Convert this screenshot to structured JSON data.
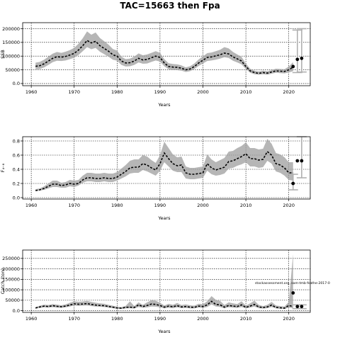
{
  "figure": {
    "title": "TAC=15663 then Fpa"
  },
  "chart_data": [
    {
      "type": "line",
      "ylabel": "SSB",
      "xlabel": "Years",
      "xlim": [
        1958,
        2025
      ],
      "ylim": [
        -8000,
        222000
      ],
      "xticks": [
        1960,
        1970,
        1980,
        1990,
        2000,
        2010,
        2020
      ],
      "yticks": [
        0,
        50000,
        100000,
        150000,
        200000
      ],
      "grid": true,
      "series": [
        {
          "x": [
            1961,
            1962,
            1963,
            1964,
            1965,
            1966,
            1967,
            1968,
            1969,
            1970,
            1971,
            1972,
            1973,
            1974,
            1975,
            1976,
            1977,
            1978,
            1979,
            1980,
            1981,
            1982,
            1983,
            1984,
            1985,
            1986,
            1987,
            1988,
            1989,
            1990,
            1991,
            1992,
            1993,
            1994,
            1995,
            1996,
            1997,
            1998,
            1999,
            2000,
            2001,
            2002,
            2003,
            2004,
            2005,
            2006,
            2007,
            2008,
            2009,
            2010,
            2011,
            2012,
            2013,
            2014,
            2015,
            2016,
            2017,
            2018,
            2019,
            2020,
            2021
          ],
          "y": [
            63000,
            65000,
            72000,
            82000,
            92000,
            98000,
            96000,
            99000,
            104000,
            110000,
            122000,
            138000,
            157000,
            148000,
            154000,
            138000,
            128000,
            118000,
            105000,
            100000,
            82000,
            75000,
            76000,
            82000,
            92000,
            86000,
            88000,
            94000,
            100000,
            95000,
            75000,
            62000,
            60000,
            59000,
            56000,
            50000,
            53000,
            62000,
            75000,
            85000,
            95000,
            97000,
            101000,
            105000,
            111000,
            108000,
            97000,
            90000,
            82000,
            62000,
            46000,
            40000,
            37000,
            40000,
            38000,
            42000,
            46000,
            45000,
            44000,
            50000,
            60000
          ],
          "lower": [
            52000,
            53000,
            59000,
            68000,
            78000,
            83000,
            82000,
            84000,
            89000,
            94000,
            104000,
            118000,
            133000,
            125000,
            130000,
            116000,
            107000,
            98000,
            87000,
            83000,
            68000,
            62000,
            63000,
            68000,
            77000,
            72000,
            73000,
            79000,
            84000,
            80000,
            63000,
            52000,
            50000,
            49000,
            47000,
            42000,
            45000,
            53000,
            64000,
            73000,
            82000,
            84000,
            87000,
            91000,
            96000,
            93000,
            83000,
            77000,
            70000,
            53000,
            39000,
            34000,
            32000,
            34000,
            32000,
            36000,
            39000,
            38000,
            37000,
            40000,
            45000
          ],
          "upper": [
            76000,
            79000,
            87000,
            98000,
            109000,
            115000,
            112000,
            116000,
            122000,
            130000,
            145000,
            165000,
            190000,
            178000,
            186000,
            166000,
            154000,
            142000,
            126000,
            120000,
            98000,
            89000,
            91000,
            98000,
            110000,
            103000,
            106000,
            112000,
            118000,
            112000,
            89000,
            74000,
            71000,
            70000,
            66000,
            59000,
            63000,
            73000,
            88000,
            99000,
            111000,
            113000,
            118000,
            123000,
            133000,
            128000,
            115000,
            106000,
            97000,
            73000,
            54000,
            47000,
            44000,
            47000,
            45000,
            49000,
            54000,
            53000,
            52000,
            62000,
            78000
          ]
        }
      ],
      "points": [
        {
          "x": 2021,
          "y": 62000
        },
        {
          "x": 2022,
          "y": 88000
        },
        {
          "x": 2023,
          "y": 92000
        }
      ],
      "projection_bars": [
        {
          "x": 2022,
          "low": 40000,
          "high": 195000
        },
        {
          "x": 2023,
          "low": 42000,
          "high": 200000
        }
      ]
    },
    {
      "type": "line",
      "ylabel": "F₄₋₈",
      "xlabel": "Years",
      "xlim": [
        1958,
        2025
      ],
      "ylim": [
        -0.02,
        0.86
      ],
      "xticks": [
        1960,
        1970,
        1980,
        1990,
        2000,
        2010,
        2020
      ],
      "yticks": [
        0.0,
        0.2,
        0.4,
        0.6,
        0.8
      ],
      "grid": true,
      "series": [
        {
          "x": [
            1961,
            1962,
            1963,
            1964,
            1965,
            1966,
            1967,
            1968,
            1969,
            1970,
            1971,
            1972,
            1973,
            1974,
            1975,
            1976,
            1977,
            1978,
            1979,
            1980,
            1981,
            1982,
            1983,
            1984,
            1985,
            1986,
            1987,
            1988,
            1989,
            1990,
            1991,
            1992,
            1993,
            1994,
            1995,
            1996,
            1997,
            1998,
            1999,
            2000,
            2001,
            2002,
            2003,
            2004,
            2005,
            2006,
            2007,
            2008,
            2009,
            2010,
            2011,
            2012,
            2013,
            2014,
            2015,
            2016,
            2017,
            2018,
            2019,
            2020,
            2021
          ],
          "y": [
            0.1,
            0.11,
            0.13,
            0.16,
            0.19,
            0.19,
            0.17,
            0.18,
            0.2,
            0.19,
            0.2,
            0.25,
            0.28,
            0.28,
            0.27,
            0.27,
            0.28,
            0.27,
            0.27,
            0.29,
            0.33,
            0.37,
            0.42,
            0.43,
            0.43,
            0.48,
            0.46,
            0.42,
            0.39,
            0.48,
            0.63,
            0.55,
            0.48,
            0.45,
            0.46,
            0.35,
            0.33,
            0.33,
            0.34,
            0.35,
            0.48,
            0.42,
            0.39,
            0.41,
            0.43,
            0.51,
            0.52,
            0.55,
            0.58,
            0.62,
            0.55,
            0.55,
            0.53,
            0.54,
            0.65,
            0.6,
            0.48,
            0.46,
            0.42,
            0.35,
            0.35
          ],
          "lower": [
            0.09,
            0.1,
            0.11,
            0.13,
            0.15,
            0.15,
            0.14,
            0.14,
            0.16,
            0.15,
            0.17,
            0.21,
            0.23,
            0.23,
            0.22,
            0.22,
            0.23,
            0.22,
            0.22,
            0.24,
            0.27,
            0.3,
            0.34,
            0.35,
            0.35,
            0.39,
            0.37,
            0.34,
            0.31,
            0.38,
            0.5,
            0.44,
            0.38,
            0.36,
            0.36,
            0.27,
            0.26,
            0.26,
            0.27,
            0.28,
            0.38,
            0.33,
            0.31,
            0.32,
            0.34,
            0.41,
            0.42,
            0.45,
            0.47,
            0.5,
            0.44,
            0.44,
            0.42,
            0.43,
            0.52,
            0.48,
            0.37,
            0.35,
            0.31,
            0.25,
            0.24
          ],
          "upper": [
            0.12,
            0.13,
            0.16,
            0.2,
            0.24,
            0.24,
            0.21,
            0.22,
            0.25,
            0.24,
            0.25,
            0.31,
            0.35,
            0.35,
            0.34,
            0.34,
            0.35,
            0.34,
            0.34,
            0.36,
            0.41,
            0.46,
            0.52,
            0.54,
            0.54,
            0.6,
            0.58,
            0.53,
            0.49,
            0.6,
            0.79,
            0.7,
            0.61,
            0.57,
            0.58,
            0.44,
            0.42,
            0.42,
            0.43,
            0.44,
            0.61,
            0.54,
            0.5,
            0.53,
            0.56,
            0.65,
            0.66,
            0.7,
            0.73,
            0.78,
            0.7,
            0.7,
            0.68,
            0.69,
            0.83,
            0.76,
            0.63,
            0.61,
            0.57,
            0.5,
            0.5
          ]
        }
      ],
      "points": [
        {
          "x": 2021,
          "y": 0.2
        },
        {
          "x": 2022,
          "y": 0.52
        },
        {
          "x": 2023,
          "y": 0.52
        }
      ],
      "projection_bars": [
        {
          "x": 2021,
          "low": 0.11,
          "high": 0.33
        },
        {
          "x": 2023,
          "low": 0.28,
          "high": 0.86
        }
      ]
    },
    {
      "type": "line",
      "ylabel": "Catch (ton)",
      "xlabel": "Years",
      "xlim": [
        1958,
        2025
      ],
      "ylim": [
        -8000,
        290000
      ],
      "xticks": [
        1960,
        1970,
        1980,
        1990,
        2000,
        2010,
        2020
      ],
      "yticks": [
        0,
        50000,
        100000,
        150000,
        200000,
        250000
      ],
      "grid": true,
      "annotation": "stockassessment.org, sam-tmb-fsathe-2017-0",
      "series": [
        {
          "x": [
            1961,
            1962,
            1963,
            1964,
            1965,
            1966,
            1967,
            1968,
            1969,
            1970,
            1971,
            1972,
            1973,
            1974,
            1975,
            1976,
            1977,
            1978,
            1979,
            1980,
            1981,
            1982,
            1983,
            1984,
            1985,
            1986,
            1987,
            1988,
            1989,
            1990,
            1991,
            1992,
            1993,
            1994,
            1995,
            1996,
            1997,
            1998,
            1999,
            2000,
            2001,
            2002,
            2003,
            2004,
            2005,
            2006,
            2007,
            2008,
            2009,
            2010,
            2011,
            2012,
            2013,
            2014,
            2015,
            2016,
            2017,
            2018,
            2019,
            2020,
            2021
          ],
          "y": [
            13000,
            18000,
            22000,
            20000,
            24000,
            21000,
            19000,
            22000,
            27000,
            33000,
            31000,
            32000,
            34000,
            30000,
            27000,
            25000,
            24000,
            20000,
            17000,
            13000,
            12000,
            16000,
            17000,
            15000,
            28000,
            20000,
            25000,
            32000,
            30000,
            25000,
            17000,
            22000,
            19000,
            24000,
            18000,
            20000,
            17000,
            16000,
            22000,
            20000,
            28000,
            45000,
            30000,
            28000,
            17000,
            25000,
            22000,
            20000,
            28000,
            16000,
            22000,
            30000,
            18000,
            15000,
            18000,
            27000,
            16000,
            14000,
            12000,
            25000,
            20000
          ],
          "lower": [
            10000,
            13000,
            16000,
            15000,
            17000,
            15000,
            14000,
            16000,
            20000,
            25000,
            23000,
            24000,
            25000,
            22000,
            20000,
            19000,
            18000,
            15000,
            12000,
            9000,
            8000,
            11000,
            12000,
            10000,
            18000,
            14000,
            16000,
            20000,
            19000,
            16000,
            11000,
            14000,
            12000,
            16000,
            12000,
            13000,
            11000,
            11000,
            15000,
            14000,
            18000,
            30000,
            20000,
            18000,
            11000,
            17000,
            15000,
            13000,
            18000,
            11000,
            15000,
            20000,
            12000,
            10000,
            12000,
            18000,
            11000,
            9000,
            8000,
            15000,
            12000
          ],
          "upper": [
            17000,
            24000,
            29000,
            27000,
            32000,
            29000,
            26000,
            30000,
            38000,
            45000,
            43000,
            44000,
            47000,
            42000,
            38000,
            35000,
            33000,
            28000,
            24000,
            19000,
            17000,
            23000,
            45000,
            22000,
            40000,
            28000,
            40000,
            50000,
            48000,
            38000,
            25000,
            33000,
            28000,
            37000,
            27000,
            30000,
            26000,
            24000,
            33000,
            31000,
            45000,
            70000,
            52000,
            47000,
            27000,
            40000,
            35000,
            32000,
            45000,
            24000,
            35000,
            48000,
            28000,
            22000,
            28000,
            42000,
            25000,
            22000,
            20000,
            42000,
            270000
          ]
        }
      ],
      "points": [
        {
          "x": 2021,
          "y": 85000
        },
        {
          "x": 2022,
          "y": 20000
        },
        {
          "x": 2023,
          "y": 20000
        }
      ],
      "projection_bars": [
        {
          "x": 2022,
          "low": 10000,
          "high": 28000
        },
        {
          "x": 2023,
          "low": 10000,
          "high": 28000
        }
      ]
    }
  ]
}
